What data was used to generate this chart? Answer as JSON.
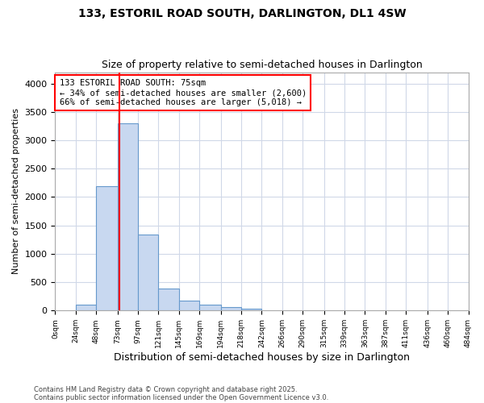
{
  "title1": "133, ESTORIL ROAD SOUTH, DARLINGTON, DL1 4SW",
  "title2": "Size of property relative to semi-detached houses in Darlington",
  "xlabel": "Distribution of semi-detached houses by size in Darlington",
  "ylabel": "Number of semi-detached properties",
  "property_size": 75,
  "property_label": "133 ESTORIL ROAD SOUTH: 75sqm",
  "pct_smaller": 34,
  "count_smaller": 2600,
  "pct_larger": 66,
  "count_larger": 5018,
  "bar_color": "#c8d8f0",
  "bar_edge_color": "#6699cc",
  "vline_color": "red",
  "annotation_box_color": "red",
  "grid_color": "#d0d8e8",
  "background_color": "#ffffff",
  "bin_edges": [
    0,
    24,
    48,
    73,
    97,
    121,
    145,
    169,
    194,
    218,
    242,
    266,
    290,
    315,
    339,
    363,
    387,
    411,
    436,
    460,
    484
  ],
  "bin_counts": [
    0,
    110,
    2190,
    3300,
    1340,
    390,
    170,
    110,
    55,
    30,
    0,
    0,
    0,
    0,
    0,
    0,
    0,
    0,
    0,
    0
  ],
  "ylim": [
    0,
    4200
  ],
  "yticks": [
    0,
    500,
    1000,
    1500,
    2000,
    2500,
    3000,
    3500,
    4000
  ],
  "footnote1": "Contains HM Land Registry data © Crown copyright and database right 2025.",
  "footnote2": "Contains public sector information licensed under the Open Government Licence v3.0."
}
